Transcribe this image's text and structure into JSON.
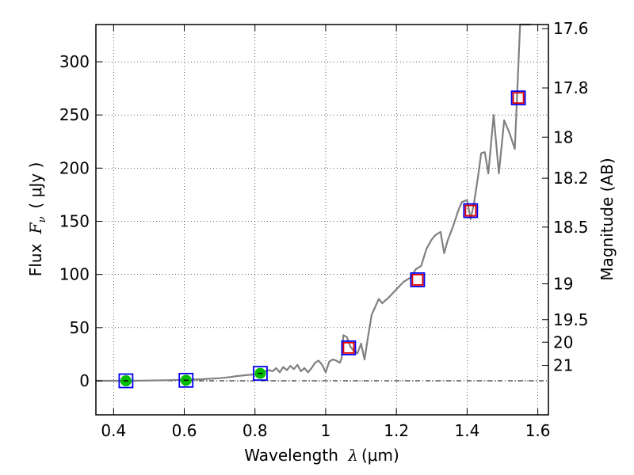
{
  "chart_data": {
    "type": "line",
    "xlabel": "Wavelength λ (μm)",
    "xlabel_prefix": "Wavelength ",
    "xlabel_var": "λ",
    "xlabel_unit": "(μm)",
    "ylabel_prefix": "Flux ",
    "ylabel_var": "F",
    "ylabel_sub": "ν",
    "ylabel_unit": "( μJy )",
    "y2label": "Magnitude (AB)",
    "xlim": [
      0.35,
      1.63
    ],
    "ylim": [
      -32,
      335
    ],
    "grid": true,
    "x_ticks": [
      {
        "value": 0.4,
        "label": "0.4"
      },
      {
        "value": 0.6,
        "label": "0.6"
      },
      {
        "value": 0.8,
        "label": "0.8"
      },
      {
        "value": 1.0,
        "label": "1"
      },
      {
        "value": 1.2,
        "label": "1.2"
      },
      {
        "value": 1.4,
        "label": "1.4"
      },
      {
        "value": 1.6,
        "label": "1.6"
      }
    ],
    "y_ticks": [
      {
        "value": 0,
        "label": "0"
      },
      {
        "value": 50,
        "label": "50"
      },
      {
        "value": 100,
        "label": "100"
      },
      {
        "value": 150,
        "label": "150"
      },
      {
        "value": 200,
        "label": "200"
      },
      {
        "value": 250,
        "label": "250"
      },
      {
        "value": 300,
        "label": "300"
      }
    ],
    "y2_ticks": [
      {
        "label": "17.6",
        "flux": 331.1
      },
      {
        "label": "17.8",
        "flux": 275.4
      },
      {
        "label": "18",
        "flux": 229.1
      },
      {
        "label": "18.2",
        "flux": 190.5
      },
      {
        "label": "18.5",
        "flux": 144.5
      },
      {
        "label": "19",
        "flux": 91.2
      },
      {
        "label": "19.5",
        "flux": 57.5
      },
      {
        "label": "20",
        "flux": 36.3
      },
      {
        "label": "21",
        "flux": 14.5
      }
    ],
    "series": [
      {
        "type": "line",
        "color": "#808080",
        "x": [
          0.35,
          0.45,
          0.55,
          0.6,
          0.65,
          0.7,
          0.73,
          0.75,
          0.78,
          0.8,
          0.82,
          0.84,
          0.85,
          0.86,
          0.87,
          0.88,
          0.89,
          0.9,
          0.91,
          0.92,
          0.93,
          0.94,
          0.95,
          0.96,
          0.97,
          0.98,
          0.99,
          1.0,
          1.01,
          1.02,
          1.03,
          1.04,
          1.045,
          1.05,
          1.06,
          1.07,
          1.08,
          1.09,
          1.1,
          1.11,
          1.12,
          1.13,
          1.15,
          1.16,
          1.18,
          1.2,
          1.22,
          1.24,
          1.255,
          1.27,
          1.285,
          1.3,
          1.31,
          1.325,
          1.335,
          1.345,
          1.36,
          1.375,
          1.385,
          1.4,
          1.41,
          1.42,
          1.43,
          1.44,
          1.45,
          1.46,
          1.475,
          1.49,
          1.505,
          1.52,
          1.535,
          1.55,
          1.565,
          1.575,
          1.58
        ],
        "y": [
          0,
          0,
          0.5,
          1,
          1.5,
          2.5,
          3.5,
          4.5,
          5.5,
          6,
          8,
          10,
          9,
          12,
          8,
          13,
          10,
          14,
          11,
          15,
          9,
          12,
          8,
          12,
          17,
          19,
          15,
          8,
          18,
          20,
          19,
          17,
          21,
          43,
          41,
          32,
          28,
          26,
          35,
          20,
          42,
          62,
          77,
          73,
          79,
          86,
          93,
          97,
          105,
          108,
          124,
          133,
          137,
          140,
          120,
          132,
          145,
          160,
          168,
          170,
          152,
          168,
          190,
          214,
          215,
          195,
          250,
          195,
          245,
          233,
          218,
          335,
          335,
          335,
          335
        ]
      },
      {
        "type": "points",
        "name_hidden": "green circles",
        "color": "#00bb00",
        "x": [
          0.435,
          0.605,
          0.815
        ],
        "y": [
          0,
          0.5,
          7
        ]
      },
      {
        "type": "points",
        "name_hidden": "red squares",
        "color": "#e00000",
        "x": [
          1.065,
          1.26,
          1.41,
          1.545
        ],
        "y": [
          31,
          95,
          160,
          266
        ]
      },
      {
        "type": "points",
        "name_hidden": "blue squares",
        "color": "#0000ee",
        "x": [
          0.435,
          0.605,
          0.815,
          1.065,
          1.26,
          1.41,
          1.545
        ],
        "y": [
          0,
          0.5,
          7,
          31,
          95,
          160,
          266
        ]
      }
    ]
  }
}
